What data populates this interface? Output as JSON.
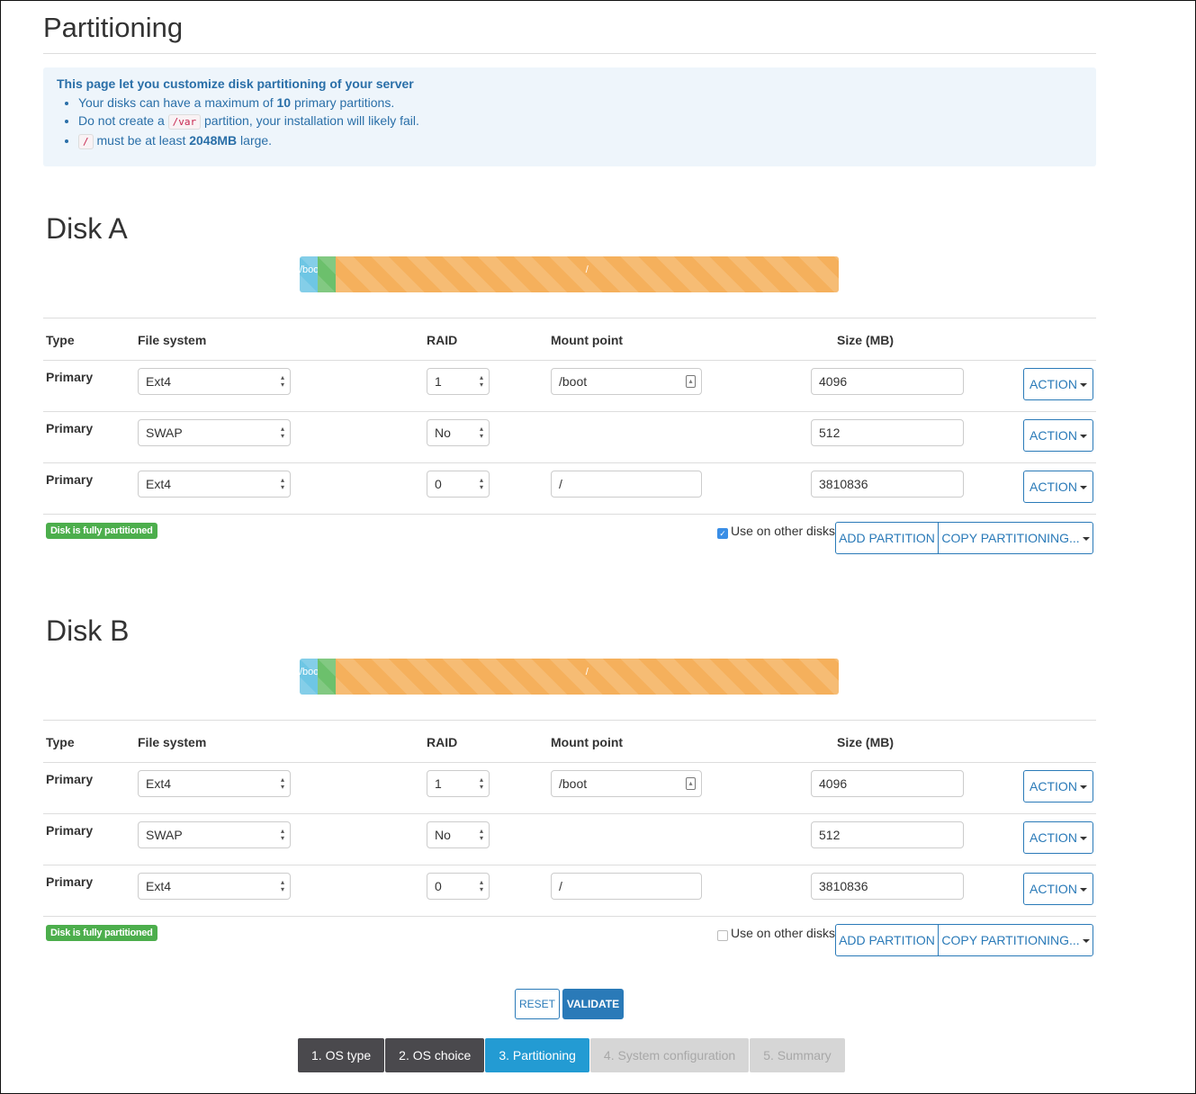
{
  "page": {
    "title": "Partitioning"
  },
  "info": {
    "heading": "This page let you customize disk partitioning of your server",
    "items": [
      {
        "pre": "Your disks can have a maximum of ",
        "bold": "10",
        "post": " primary partitions."
      },
      {
        "pre": "Do not create a ",
        "code": "/var",
        "post": " partition, your installation will likely fail."
      },
      {
        "code": "/",
        "pre": " must be at least ",
        "bold": "2048MB",
        "post": " large."
      }
    ]
  },
  "columns": {
    "type": "Type",
    "fs": "File system",
    "raid": "RAID",
    "mount": "Mount point",
    "size": "Size (MB)"
  },
  "colors": {
    "boot": "#5bc0de",
    "swap": "#5cb85c",
    "root": "#f0ad4e",
    "accent": "#2a7ab8"
  },
  "disks": [
    {
      "name": "Disk A",
      "bar": [
        {
          "label": "/boot",
          "color": "#6ec6e4",
          "percent": 3.3
        },
        {
          "label": "",
          "color": "#6cc06c",
          "percent": 3.3
        },
        {
          "label": "/",
          "color": "#f5b05c",
          "percent": 93.4
        }
      ],
      "partitions": [
        {
          "type": "Primary",
          "fs": "Ext4",
          "raid": "1",
          "mount": "/boot",
          "size": "4096",
          "action": "ACTION"
        },
        {
          "type": "Primary",
          "fs": "SWAP",
          "raid": "No",
          "mount": null,
          "size": "512",
          "action": "ACTION"
        },
        {
          "type": "Primary",
          "fs": "Ext4",
          "raid": "0",
          "mount": "/",
          "size": "3810836",
          "action": "ACTION"
        }
      ],
      "status": "Disk is fully partitioned",
      "use_other": "Use on other disks",
      "use_other_checked": true,
      "add": "ADD PARTITION",
      "copy": "COPY PARTITIONING..."
    },
    {
      "name": "Disk B",
      "bar": [
        {
          "label": "/boot",
          "color": "#6ec6e4",
          "percent": 3.3
        },
        {
          "label": "",
          "color": "#6cc06c",
          "percent": 3.3
        },
        {
          "label": "/",
          "color": "#f5b05c",
          "percent": 93.4
        }
      ],
      "partitions": [
        {
          "type": "Primary",
          "fs": "Ext4",
          "raid": "1",
          "mount": "/boot",
          "size": "4096",
          "action": "ACTION"
        },
        {
          "type": "Primary",
          "fs": "SWAP",
          "raid": "No",
          "mount": null,
          "size": "512",
          "action": "ACTION"
        },
        {
          "type": "Primary",
          "fs": "Ext4",
          "raid": "0",
          "mount": "/",
          "size": "3810836",
          "action": "ACTION"
        }
      ],
      "status": "Disk is fully partitioned",
      "use_other": "Use on other disks",
      "use_other_checked": false,
      "add": "ADD PARTITION",
      "copy": "COPY PARTITIONING..."
    }
  ],
  "buttons": {
    "reset": "RESET",
    "validate": "VALIDATE"
  },
  "steps": [
    {
      "label": "1. OS type",
      "state": "done"
    },
    {
      "label": "2. OS choice",
      "state": "done"
    },
    {
      "label": "3. Partitioning",
      "state": "active"
    },
    {
      "label": "4. System configuration",
      "state": "disabled"
    },
    {
      "label": "5. Summary",
      "state": "disabled"
    }
  ]
}
